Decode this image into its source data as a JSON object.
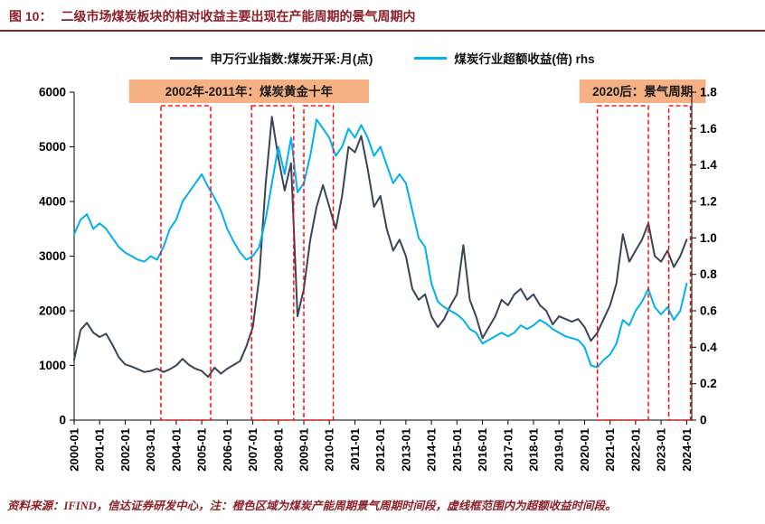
{
  "page": {
    "title_prefix": "图 10：",
    "title": "二级市场煤炭板块的相对收益主要出现在产能周期的景气周期内",
    "source_note": "资料来源：IFIND，信达证券研发中心，注：橙色区域为煤炭产能周期景气周期时间段，虚线框范围内为超额收益时间段。"
  },
  "colors": {
    "title_red": "#8C1F28",
    "navy": "#3A4459",
    "cyan": "#00B0F0",
    "orange": "#F5B183",
    "dashed_red": "#FF0000",
    "axis": "#000000"
  },
  "chart_data": {
    "type": "line",
    "title": "二级市场煤炭板块的相对收益主要出现在产能周期的景气周期内",
    "x_tick_labels": [
      "2000-01",
      "2001-01",
      "2002-01",
      "2003-01",
      "2004-01",
      "2005-01",
      "2006-01",
      "2007-01",
      "2008-01",
      "2009-01",
      "2010-01",
      "2011-01",
      "2012-01",
      "2013-01",
      "2014-01",
      "2015-01",
      "2016-01",
      "2017-01",
      "2018-01",
      "2019-01",
      "2020-01",
      "2021-01",
      "2022-01",
      "2023-01",
      "2024-01"
    ],
    "left_axis": {
      "min": 0,
      "max": 6000,
      "step": 1000
    },
    "right_axis": {
      "min": 0,
      "max": 1.8,
      "step": 0.2
    },
    "legend_position": "top-center",
    "series": [
      {
        "name": "申万行业指数:煤炭开采:月(点)",
        "axis": "left",
        "color": "#3A4459",
        "start_year": 2000,
        "step_years": 0.25,
        "values": [
          1100,
          1650,
          1780,
          1600,
          1520,
          1580,
          1380,
          1150,
          1020,
          980,
          930,
          880,
          900,
          940,
          880,
          930,
          1000,
          1120,
          1010,
          940,
          900,
          790,
          960,
          850,
          940,
          1010,
          1080,
          1350,
          1700,
          2600,
          4300,
          5550,
          4800,
          4200,
          4700,
          1900,
          2400,
          3300,
          3900,
          4300,
          3900,
          3500,
          4100,
          5000,
          4900,
          5200,
          4600,
          3900,
          4100,
          3500,
          3100,
          3300,
          3000,
          2400,
          2200,
          2300,
          1900,
          1700,
          1850,
          2100,
          2300,
          3200,
          2200,
          1900,
          1500,
          1700,
          1900,
          2200,
          2100,
          2300,
          2400,
          2200,
          2300,
          2100,
          2000,
          1750,
          1900,
          1850,
          1800,
          1850,
          1700,
          1450,
          1600,
          1850,
          2100,
          2500,
          3400,
          2900,
          3100,
          3300,
          3600,
          3000,
          2900,
          3100,
          2800,
          3000,
          3300
        ]
      },
      {
        "name": "煤炭行业超额收益(倍) rhs",
        "axis": "right",
        "color": "#00B0F0",
        "start_year": 2000,
        "step_years": 0.25,
        "values": [
          1.02,
          1.1,
          1.13,
          1.05,
          1.08,
          1.05,
          1.0,
          0.95,
          0.92,
          0.9,
          0.88,
          0.87,
          0.9,
          0.88,
          0.95,
          1.05,
          1.1,
          1.2,
          1.25,
          1.3,
          1.35,
          1.28,
          1.22,
          1.15,
          1.05,
          0.98,
          0.92,
          0.88,
          0.9,
          0.95,
          1.1,
          1.3,
          1.5,
          1.35,
          1.55,
          1.25,
          1.3,
          1.45,
          1.65,
          1.6,
          1.55,
          1.45,
          1.5,
          1.6,
          1.55,
          1.62,
          1.55,
          1.45,
          1.5,
          1.4,
          1.3,
          1.35,
          1.3,
          1.15,
          1.0,
          0.95,
          0.75,
          0.65,
          0.62,
          0.6,
          0.58,
          0.55,
          0.5,
          0.48,
          0.42,
          0.44,
          0.46,
          0.48,
          0.46,
          0.48,
          0.52,
          0.5,
          0.52,
          0.55,
          0.53,
          0.5,
          0.48,
          0.46,
          0.45,
          0.44,
          0.4,
          0.3,
          0.29,
          0.33,
          0.36,
          0.42,
          0.55,
          0.52,
          0.6,
          0.65,
          0.72,
          0.62,
          0.58,
          0.62,
          0.55,
          0.6,
          0.75
        ]
      }
    ],
    "dashed_boxes": [
      {
        "x_start": 2003.4,
        "x_end": 2005.35
      },
      {
        "x_start": 2006.95,
        "x_end": 2008.6
      },
      {
        "x_start": 2009.0,
        "x_end": 2010.15
      },
      {
        "x_start": 2020.5,
        "x_end": 2022.5
      },
      {
        "x_start": 2023.3,
        "x_end": 2024.15
      }
    ],
    "annotations": [
      {
        "label": "2002年-2011年：煤炭黄金十年",
        "x_start": 2002.15,
        "x_end": 2011.55
      },
      {
        "label": "2020后：景气周期",
        "x_start": 2019.8,
        "x_end": 2024.75
      }
    ]
  }
}
